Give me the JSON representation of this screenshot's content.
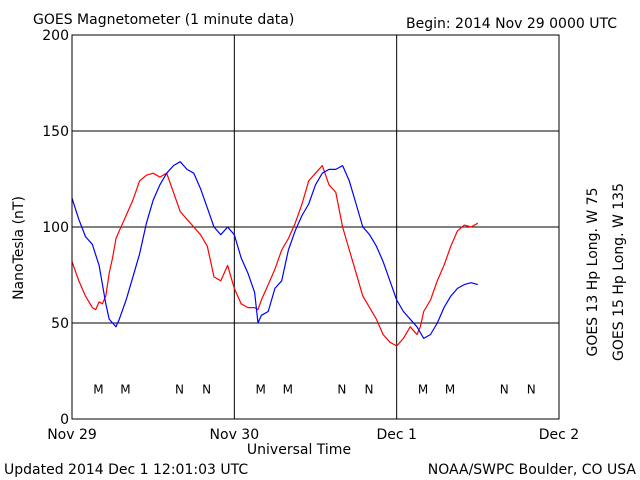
{
  "header": {
    "title": "GOES Magnetometer (1 minute data)",
    "begin": "Begin:  2014 Nov 29 0000 UTC"
  },
  "footer": {
    "updated": "Updated 2014 Dec  1 12:01:03 UTC",
    "source": "NOAA/SWPC Boulder, CO USA"
  },
  "colors": {
    "goes13": "#ff0000",
    "goes15": "#0000ff",
    "axis": "#000000"
  },
  "chart_data": {
    "type": "line",
    "title": "GOES Magnetometer (1 minute data)",
    "xlabel": "Universal Time",
    "ylabel": "NanoTesla (nT)",
    "x_unit": "hours since 2014 Nov 29 0000 UTC",
    "xlim": [
      0,
      72
    ],
    "ylim": [
      0,
      200
    ],
    "yticks": [
      0,
      50,
      100,
      150,
      200
    ],
    "xticks": [
      {
        "x": 0,
        "label": "Nov 29"
      },
      {
        "x": 24,
        "label": "Nov 30"
      },
      {
        "x": 48,
        "label": "Dec 1"
      },
      {
        "x": 72,
        "label": "Dec 2"
      }
    ],
    "grid": true,
    "legend_position": "right (vertical text)",
    "series": [
      {
        "name": "GOES 13 Hp  Long. W 75",
        "color": "#ff0000",
        "x": [
          0,
          1,
          2,
          3,
          3.5,
          4,
          4.5,
          5,
          5.5,
          6,
          6.5,
          7,
          8,
          9,
          10,
          11,
          12,
          13,
          14,
          15,
          16,
          17,
          18,
          19,
          20,
          21,
          22,
          23,
          24,
          25,
          26,
          27,
          27.5,
          28,
          29,
          30,
          31,
          32,
          33,
          34,
          35,
          36,
          37,
          38,
          39,
          40,
          41,
          42,
          43,
          44,
          45,
          46,
          47,
          48,
          49,
          50,
          50.5,
          51,
          51.5,
          52,
          53,
          54,
          55,
          56,
          57,
          58,
          59,
          60
        ],
        "values": [
          82,
          72,
          64,
          58,
          57,
          61,
          60,
          64,
          76,
          84,
          94,
          98,
          106,
          114,
          124,
          127,
          128,
          126,
          128,
          118,
          108,
          104,
          100,
          96,
          90,
          74,
          72,
          80,
          68,
          60,
          58,
          58,
          57,
          62,
          70,
          78,
          88,
          94,
          102,
          112,
          124,
          128,
          132,
          122,
          118,
          100,
          88,
          76,
          64,
          58,
          52,
          44,
          40,
          38,
          42,
          48,
          46,
          44,
          48,
          56,
          62,
          72,
          80,
          90,
          98,
          101,
          100,
          102
        ]
      },
      {
        "name": "GOES 15 Hp  Long. W 135",
        "color": "#0000ff",
        "x": [
          0,
          1,
          2,
          3,
          4,
          5,
          5.5,
          6,
          6.5,
          7,
          8,
          9,
          10,
          11,
          12,
          13,
          14,
          15,
          16,
          17,
          18,
          19,
          20,
          21,
          22,
          23,
          24,
          25,
          26,
          27,
          27.5,
          28,
          29,
          30,
          31,
          32,
          33,
          34,
          35,
          36,
          37,
          38,
          39,
          40,
          41,
          42,
          43,
          44,
          45,
          46,
          47,
          48,
          49,
          50,
          51,
          52,
          53,
          54,
          55,
          56,
          57,
          58,
          59,
          60
        ],
        "values": [
          115,
          104,
          95,
          91,
          80,
          60,
          52,
          50,
          48,
          52,
          62,
          74,
          86,
          102,
          114,
          122,
          128,
          132,
          134,
          130,
          128,
          120,
          110,
          100,
          96,
          100,
          96,
          84,
          76,
          66,
          50,
          54,
          56,
          68,
          72,
          88,
          98,
          106,
          112,
          122,
          128,
          130,
          130,
          132,
          124,
          112,
          100,
          96,
          90,
          82,
          72,
          62,
          56,
          52,
          48,
          42,
          44,
          50,
          58,
          64,
          68,
          70,
          71,
          70
        ]
      }
    ],
    "markers": {
      "goes13": [
        {
          "x": 3.9,
          "label": "M"
        },
        {
          "x": 15.9,
          "label": "N"
        },
        {
          "x": 27.9,
          "label": "M"
        },
        {
          "x": 39.9,
          "label": "N"
        },
        {
          "x": 51.9,
          "label": "M"
        },
        {
          "x": 63.9,
          "label": "N"
        }
      ],
      "goes15": [
        {
          "x": 7.9,
          "label": "M"
        },
        {
          "x": 19.9,
          "label": "N"
        },
        {
          "x": 31.9,
          "label": "M"
        },
        {
          "x": 43.9,
          "label": "N"
        },
        {
          "x": 55.9,
          "label": "M"
        },
        {
          "x": 67.9,
          "label": "N"
        }
      ],
      "y_value": 16
    }
  }
}
